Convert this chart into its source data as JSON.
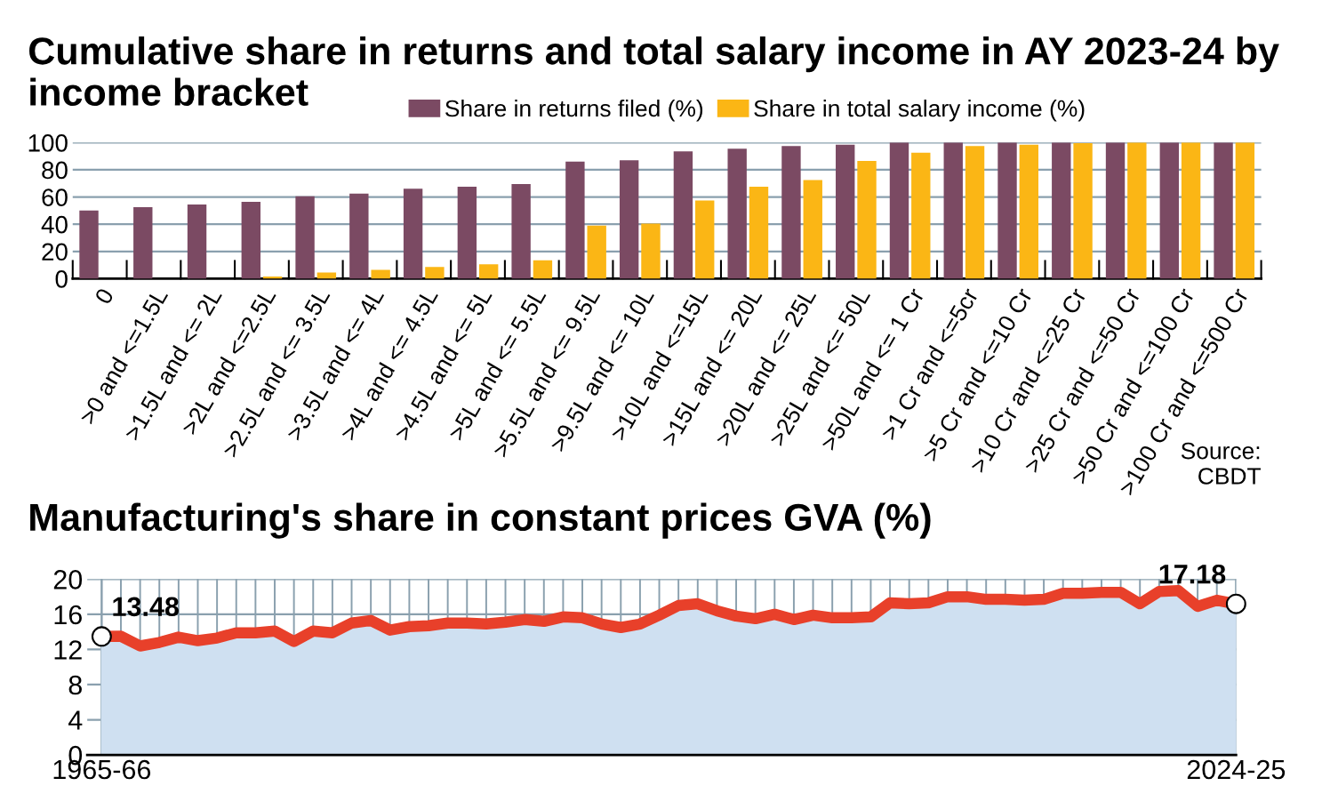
{
  "chart_data": [
    {
      "type": "bar",
      "title": "Cumulative share in returns and total salary income in AY 2023-24 by income bracket",
      "categories": [
        "0",
        ">0 and <=1.5L",
        ">1.5L and <= 2L",
        ">2L and <=2.5L",
        ">2.5L and <= 3.5L",
        ">3.5L and <= 4L",
        ">4L and <= 4.5L",
        ">4.5L and <= 5L",
        ">5L and <= 5.5L",
        ">5.5L and <= 9.5L",
        ">9.5L and <= 10L",
        ">10L and <=15L",
        ">15L and <= 20L",
        ">20L and <= 25L",
        ">25L and <= 50L",
        ">50L and <= 1 Cr",
        ">1 Cr and <=5cr",
        ">5 Cr and <=10 Cr",
        ">10 Cr and <=25 Cr",
        ">25 Cr and <=50 Cr",
        ">50 Cr and <=100 Cr",
        ">100 Cr and <=500 Cr"
      ],
      "series": [
        {
          "name": "Share in returns filed (%)",
          "color": "#7b4a63",
          "values": [
            50,
            52.5,
            54.5,
            56.5,
            60.5,
            62.5,
            66,
            67.5,
            69.5,
            86,
            87,
            93.5,
            95.5,
            97.5,
            98.5,
            100,
            100,
            100,
            100,
            100,
            100,
            100
          ]
        },
        {
          "name": "Share in total salary income (%)",
          "color": "#fbb615",
          "values": [
            0,
            0,
            0,
            1.5,
            4.5,
            6.5,
            8.5,
            10.5,
            13.5,
            39,
            40.5,
            57.5,
            67.5,
            72.5,
            86.5,
            92.5,
            97.5,
            98.5,
            99.5,
            100,
            100,
            100
          ]
        }
      ],
      "ylim": [
        0,
        100
      ],
      "yticks": [
        0,
        20,
        40,
        60,
        80,
        100
      ],
      "grid": "y",
      "legend": "top",
      "annotations": [
        "Source:\nCBDT"
      ]
    },
    {
      "type": "line",
      "title": "Manufacturing's share in constant prices GVA (%)",
      "categories": [
        "1965-66",
        null,
        null,
        null,
        null,
        null,
        null,
        null,
        null,
        null,
        null,
        null,
        null,
        null,
        null,
        null,
        null,
        null,
        null,
        null,
        null,
        null,
        null,
        null,
        null,
        null,
        null,
        null,
        null,
        null,
        null,
        null,
        null,
        null,
        null,
        null,
        null,
        null,
        null,
        null,
        null,
        null,
        null,
        null,
        null,
        null,
        null,
        null,
        null,
        null,
        null,
        null,
        null,
        null,
        null,
        null,
        null,
        null,
        null,
        "2024-25"
      ],
      "series": [
        {
          "color": "#e8402a",
          "values": [
            13.48,
            13.5,
            12.4,
            12.8,
            13.4,
            13.0,
            13.3,
            13.9,
            13.9,
            14.1,
            12.9,
            14.1,
            13.9,
            15.0,
            15.3,
            14.2,
            14.6,
            14.7,
            15.0,
            15.0,
            14.9,
            15.1,
            15.4,
            15.2,
            15.7,
            15.6,
            14.9,
            14.5,
            14.9,
            15.9,
            17.0,
            17.2,
            16.4,
            15.8,
            15.5,
            16.0,
            15.4,
            15.9,
            15.6,
            15.6,
            15.7,
            17.3,
            17.2,
            17.3,
            18.0,
            18.0,
            17.7,
            17.7,
            17.6,
            17.7,
            18.4,
            18.4,
            18.5,
            18.5,
            17.2,
            18.6,
            18.7,
            16.9,
            17.6,
            17.18
          ]
        }
      ],
      "ylim": [
        0,
        20
      ],
      "yticks": [
        0,
        4,
        8,
        12,
        16,
        20
      ],
      "grid": true,
      "annotations": [
        {
          "text": "13.48",
          "x": "1965-66",
          "y": 13.48
        },
        {
          "text": "17.18",
          "x": "2024-25",
          "y": 17.18
        }
      ]
    }
  ]
}
